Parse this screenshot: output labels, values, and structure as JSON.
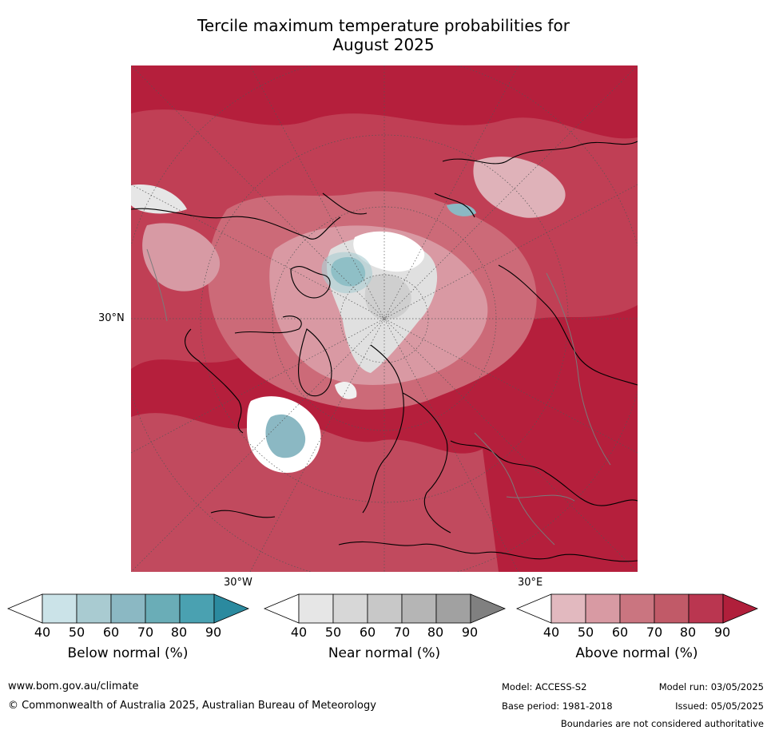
{
  "title_line1": "Tercile maximum temperature probabilities for",
  "title_line2": "August 2025",
  "lat_label": "30°N",
  "lon_label_left": "30°W",
  "lon_label_right": "30°E",
  "colorbars": [
    {
      "label": "Below normal (%)",
      "ticks": [
        "40",
        "50",
        "60",
        "70",
        "80",
        "90"
      ],
      "colors": [
        "#ffffff",
        "#cbe3e8",
        "#a9cbd1",
        "#8bb8c3",
        "#6aadb7",
        "#4aa1b1",
        "#2b8a9f"
      ]
    },
    {
      "label": "Near normal (%)",
      "ticks": [
        "40",
        "50",
        "60",
        "70",
        "80",
        "90"
      ],
      "colors": [
        "#ffffff",
        "#e6e6e6",
        "#d7d7d7",
        "#c8c8c8",
        "#b5b5b5",
        "#a1a1a1",
        "#808080"
      ]
    },
    {
      "label": "Above normal (%)",
      "ticks": [
        "40",
        "50",
        "60",
        "70",
        "80",
        "90"
      ],
      "colors": [
        "#ffffff",
        "#e2b9bf",
        "#d89aa3",
        "#ca7580",
        "#c15a68",
        "#ba3650",
        "#b01f3b"
      ]
    }
  ],
  "footer": {
    "url": "www.bom.gov.au/climate",
    "copyright": "© Commonwealth of Australia 2025, Australian Bureau of Meteorology",
    "model": "Model: ACCESS-S2",
    "base_period": "Base period: 1981-2018",
    "model_run": "Model run: 03/05/2025",
    "issued": "Issued: 05/05/2025",
    "disclaimer": "Boundaries are not considered authoritative"
  }
}
